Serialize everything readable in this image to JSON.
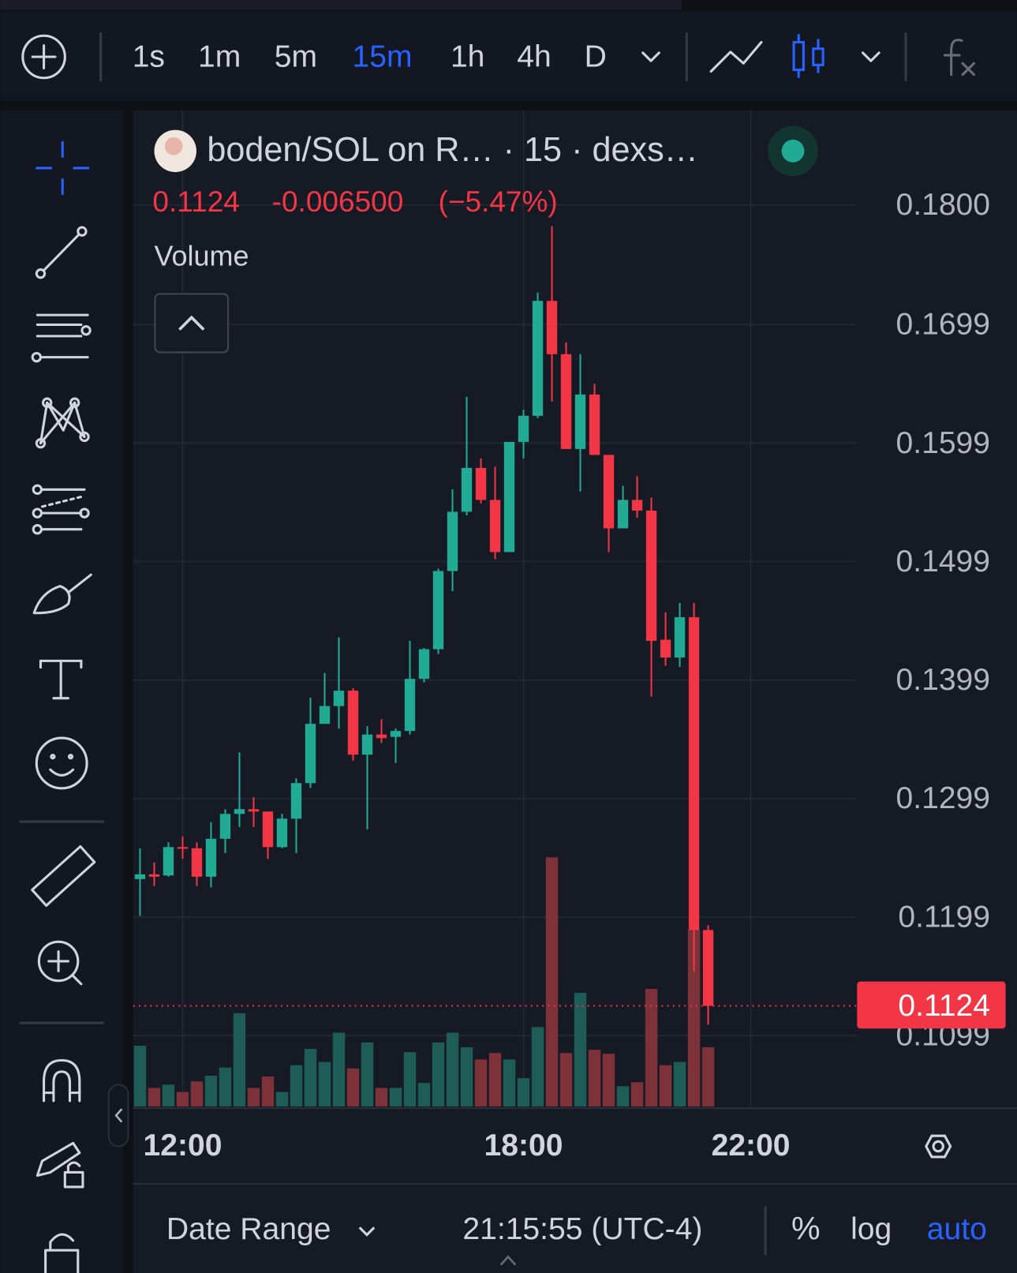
{
  "chart_data": {
    "type": "candlestick",
    "title": "boden/SOL on R… · 15 · dexs…",
    "x": [
      11.25,
      11.5,
      11.75,
      12,
      12.25,
      12.5,
      12.75,
      13,
      13.25,
      13.5,
      13.75,
      14,
      14.25,
      14.5,
      14.75,
      15,
      15.25,
      15.5,
      15.75,
      16,
      16.25,
      16.5,
      16.75,
      17,
      17.25,
      17.5,
      17.75,
      18,
      18.25,
      18.5,
      18.75,
      19,
      19.25,
      19.5,
      19.75,
      20,
      20.25,
      20.5,
      20.75,
      21,
      21.25
    ],
    "open": [
      0.1231,
      0.1235,
      0.1234,
      0.1258,
      0.1257,
      0.1233,
      0.1265,
      0.1286,
      0.129,
      0.1288,
      0.1258,
      0.1282,
      0.1312,
      0.1362,
      0.1377,
      0.139,
      0.1336,
      0.1353,
      0.1351,
      0.1356,
      0.14,
      0.1425,
      0.1491,
      0.1541,
      0.1578,
      0.1551,
      0.1507,
      0.16,
      0.1622,
      0.1719,
      0.1674,
      0.1594,
      0.164,
      0.1589,
      0.1527,
      0.1551,
      0.1542,
      0.1433,
      0.1418,
      0.1452,
      0.1188
    ],
    "high": [
      0.1257,
      0.1245,
      0.1262,
      0.1267,
      0.1262,
      0.1279,
      0.129,
      0.1338,
      0.13,
      0.1288,
      0.1286,
      0.1316,
      0.1384,
      0.1405,
      0.1435,
      0.1392,
      0.136,
      0.1366,
      0.1358,
      0.1432,
      0.1426,
      0.1493,
      0.156,
      0.1638,
      0.1586,
      0.1579,
      0.16,
      0.1627,
      0.1726,
      0.1782,
      0.1684,
      0.1674,
      0.1649,
      0.1589,
      0.1563,
      0.1571,
      0.1553,
      0.1456,
      0.1464,
      0.1464,
      0.1192
    ],
    "low": [
      0.12,
      0.1225,
      0.1233,
      0.1248,
      0.1225,
      0.1224,
      0.1253,
      0.1275,
      0.1275,
      0.1248,
      0.1257,
      0.1253,
      0.1308,
      0.1362,
      0.1358,
      0.1331,
      0.1273,
      0.1346,
      0.1329,
      0.1353,
      0.1397,
      0.1421,
      0.1474,
      0.1538,
      0.1548,
      0.1501,
      0.1507,
      0.1586,
      0.162,
      0.1634,
      0.1594,
      0.1558,
      0.1589,
      0.1507,
      0.1527,
      0.1536,
      0.1385,
      0.1411,
      0.141,
      0.1153,
      0.1108
    ],
    "close": [
      0.1235,
      0.1233,
      0.1258,
      0.1257,
      0.1233,
      0.1265,
      0.1286,
      0.129,
      0.1288,
      0.1258,
      0.1282,
      0.1312,
      0.1362,
      0.1377,
      0.139,
      0.1336,
      0.1353,
      0.135,
      0.1356,
      0.14,
      0.1425,
      0.1491,
      0.1541,
      0.1578,
      0.1551,
      0.1507,
      0.16,
      0.1622,
      0.1719,
      0.1674,
      0.1594,
      0.164,
      0.1589,
      0.1527,
      0.1551,
      0.1542,
      0.1432,
      0.1418,
      0.1452,
      0.1188,
      0.1124
    ],
    "volume": [
      75,
      23,
      27,
      18,
      31,
      38,
      48,
      115,
      23,
      37,
      18,
      51,
      71,
      55,
      91,
      47,
      79,
      23,
      23,
      67,
      29,
      79,
      91,
      73,
      58,
      66,
      58,
      35,
      98,
      307,
      66,
      140,
      70,
      65,
      25,
      30,
      145,
      51,
      55,
      218,
      73
    ],
    "volume_label": "Volume",
    "up_color": "#22ab94",
    "down_color": "#f23645",
    "up_volume_color": "#1e5d56",
    "down_volume_color": "#7d3139",
    "ylim": [
      0.1039,
      0.1877
    ],
    "yticks": [
      {
        "value": 0.18,
        "label": "0.1800"
      },
      0.1699,
      0.1599,
      0.1499,
      0.1399,
      0.1299,
      0.1199,
      0.1099
    ],
    "xlim": [
      11.143,
      23.857
    ],
    "xticks": [
      {
        "value": 12,
        "label": "12:00"
      },
      {
        "value": 18,
        "label": "18:00"
      },
      {
        "value": 22,
        "label": "22:00"
      }
    ],
    "grid": true,
    "last_price": 0.1124,
    "change": "-0.006500",
    "change_pct": "(−5.47%)"
  },
  "ui": {
    "timeframes": [
      "1s",
      "1m",
      "5m",
      "15m",
      "1h",
      "4h",
      "D"
    ],
    "active_timeframe": "15m",
    "date_range": "Date Range",
    "clock": "21:15:55 (UTC-4)",
    "percent": "%",
    "log": "log",
    "auto": "auto"
  }
}
